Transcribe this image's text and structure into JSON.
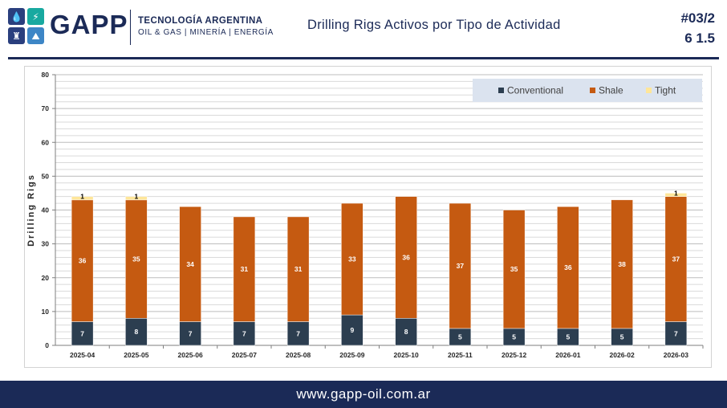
{
  "header": {
    "brand": "GAPP",
    "tagline_line1": "TECNOLOGÍA ARGENTINA",
    "tagline_line2": "OIL & GAS | MINERÍA | ENERGÍA",
    "title": "Drilling Rigs Activos por Tipo de Actividad",
    "doc_number": "#03/2",
    "doc_version": "6 1.5",
    "logo_tiles": [
      {
        "icon": "oil-drop-icon",
        "glyph": "💧",
        "color": "#2a3f7e"
      },
      {
        "icon": "lightning-icon",
        "glyph": "⚡",
        "color": "#18a9a0"
      },
      {
        "icon": "oil-rig-icon",
        "glyph": "♜",
        "color": "#2a3f7e"
      },
      {
        "icon": "mountain-icon",
        "glyph": "⛰",
        "color": "#3d86c6"
      }
    ]
  },
  "footer": {
    "url": "www.gapp-oil.com.ar"
  },
  "colors": {
    "brand_navy": "#1b2a57",
    "conventional": "#2c3e50",
    "shale": "#c55a11",
    "tight": "#ffe699",
    "legend_bg": "#dbe3ef",
    "grid": "#c8c8c8"
  },
  "chart_data": {
    "type": "bar",
    "stacked": true,
    "title": "",
    "xlabel": "",
    "ylabel": "Drilling Rigs",
    "ylim": [
      0,
      80
    ],
    "y_ticks": [
      "0",
      "10",
      "20",
      "30",
      "40",
      "50",
      "60",
      "70",
      "80"
    ],
    "grid": true,
    "legend_position": "top-right",
    "categories": [
      "2025-04",
      "2025-05",
      "2025-06",
      "2025-07",
      "2025-08",
      "2025-09",
      "2025-10",
      "2025-11",
      "2025-12",
      "2026-01",
      "2026-02",
      "2026-03"
    ],
    "series": [
      {
        "name": "Conventional",
        "color": "#2c3e50",
        "label_color": "#ffffff",
        "values": [
          7,
          8,
          7,
          7,
          7,
          9,
          8,
          5,
          5,
          5,
          5,
          7
        ]
      },
      {
        "name": "Shale",
        "color": "#c55a11",
        "label_color": "#ffffff",
        "values": [
          36,
          35,
          34,
          31,
          31,
          33,
          36,
          37,
          35,
          36,
          38,
          37
        ]
      },
      {
        "name": "Tight",
        "color": "#ffe699",
        "label_color": "#000000",
        "values": [
          1,
          1,
          0,
          0,
          0,
          0,
          0,
          0,
          0,
          0,
          0,
          1
        ]
      }
    ]
  }
}
